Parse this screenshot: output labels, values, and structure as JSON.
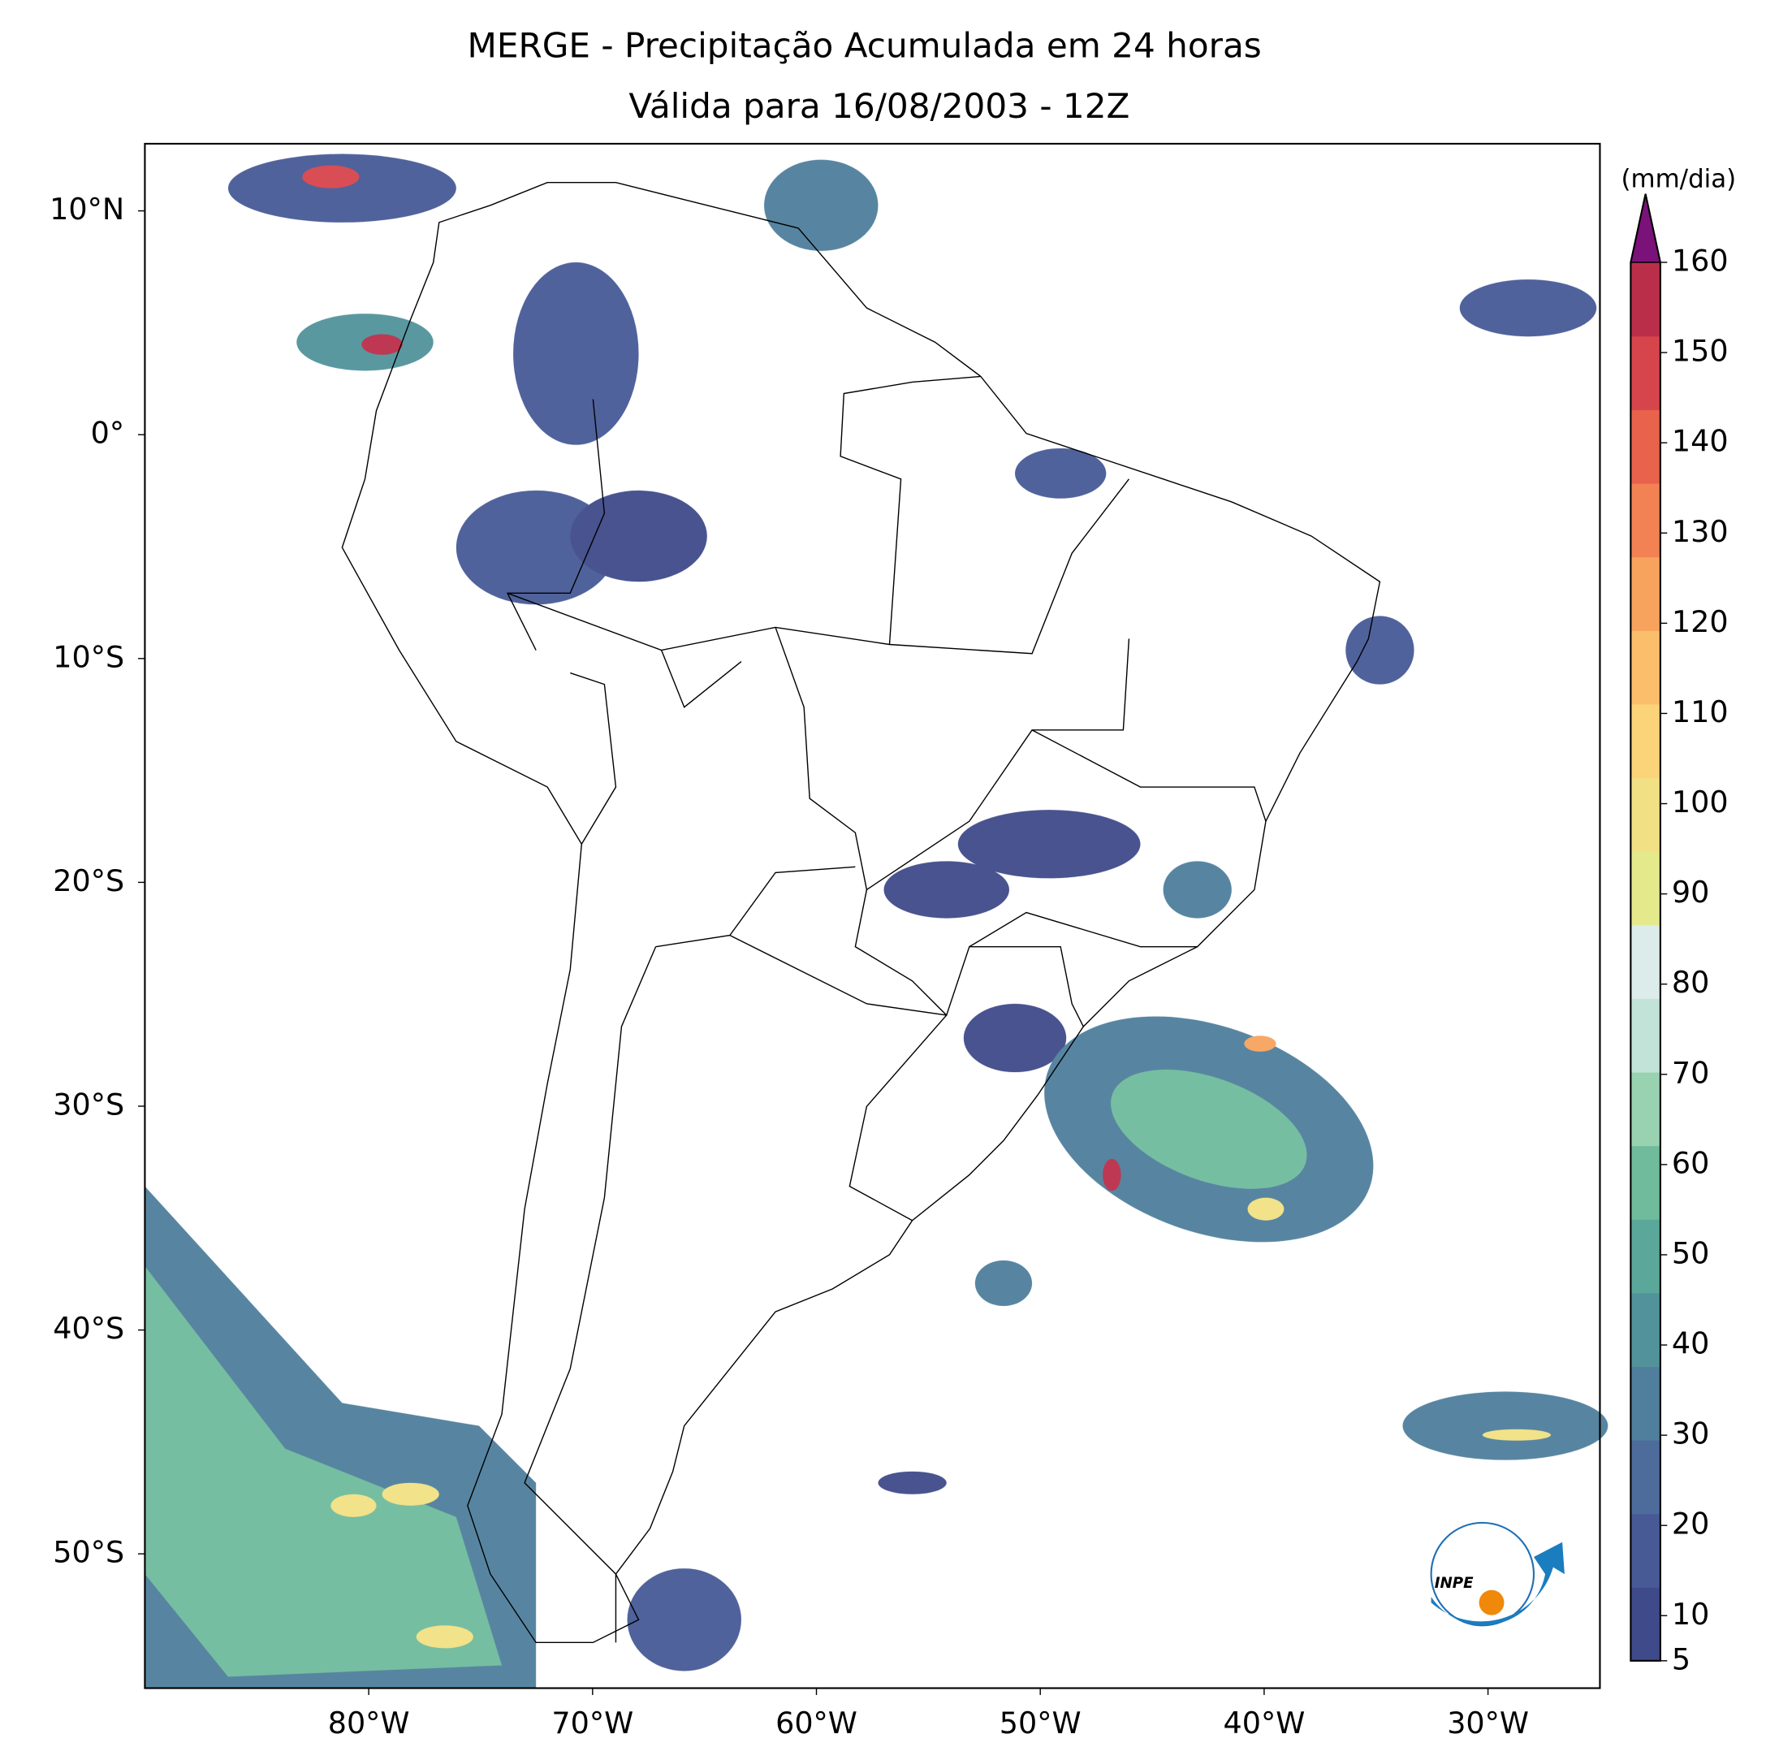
{
  "map": {
    "title": "MERGE - Precipitação Acumulada em 24 horas",
    "subtitle": "Válida para 16/08/2003 - 12Z",
    "lon_range": [
      -90,
      -25
    ],
    "lat_range": [
      -56,
      13
    ],
    "lon_ticks": [
      {
        "value": -80,
        "label": "80°W"
      },
      {
        "value": -70,
        "label": "70°W"
      },
      {
        "value": -60,
        "label": "60°W"
      },
      {
        "value": -50,
        "label": "50°W"
      },
      {
        "value": -40,
        "label": "40°W"
      },
      {
        "value": -30,
        "label": "30°W"
      }
    ],
    "lat_ticks": [
      {
        "value": 10,
        "label": "10°N"
      },
      {
        "value": 0,
        "label": "0°"
      },
      {
        "value": -10,
        "label": "10°S"
      },
      {
        "value": -20,
        "label": "20°S"
      },
      {
        "value": -30,
        "label": "30°S"
      },
      {
        "value": -40,
        "label": "40°S"
      },
      {
        "value": -50,
        "label": "50°S"
      }
    ],
    "colorbar": {
      "label": "(mm/dia)",
      "range": [
        5,
        160
      ],
      "ticks": [
        5,
        10,
        20,
        30,
        40,
        50,
        60,
        70,
        80,
        90,
        100,
        110,
        120,
        130,
        140,
        150,
        160
      ],
      "colors": [
        "#3f4a8a",
        "#475a96",
        "#4d6c9c",
        "#4f7f9c",
        "#52939b",
        "#5ba79a",
        "#6fbb9c",
        "#98d2b0",
        "#c2e4d8",
        "#dcecea",
        "#e4ea8c",
        "#f2e184",
        "#fbd47a",
        "#fbbf6c",
        "#f7a35e",
        "#f28153",
        "#e8624c",
        "#d6454b",
        "#bb2e4a"
      ],
      "over_color": "#7b127a"
    },
    "logo": {
      "text": "INPE"
    }
  }
}
